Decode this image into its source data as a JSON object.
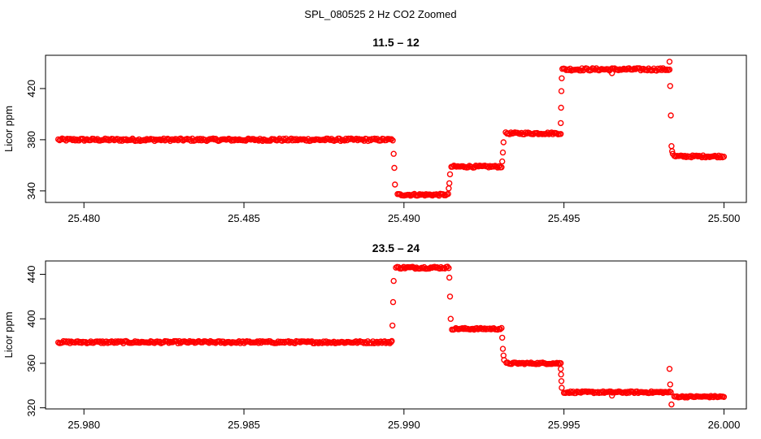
{
  "figure_title": "SPL_080525  2 Hz CO2 Zoomed",
  "colors": {
    "points": "#ff0000",
    "axes": "#000000",
    "background": "#ffffff"
  },
  "chart_data": [
    {
      "type": "scatter",
      "title": "11.5 – 12",
      "xlabel": "",
      "ylabel": "Licor ppm",
      "xlim": [
        25.4788,
        25.5007
      ],
      "ylim": [
        331,
        446
      ],
      "xticks": [
        "25.480",
        "25.485",
        "25.490",
        "25.495",
        "25.500"
      ],
      "yticks": [
        "340",
        "380",
        "420"
      ],
      "grid": false,
      "marker": "open-circle",
      "segments": [
        {
          "x_start": 25.4792,
          "x_end": 25.48965,
          "y": 380,
          "noise": 1.0
        },
        {
          "x_start": 25.4898,
          "x_end": 25.49138,
          "y": 337,
          "noise": 0.8
        },
        {
          "x_start": 25.49148,
          "x_end": 25.49305,
          "y": 359,
          "noise": 0.8
        },
        {
          "x_start": 25.49318,
          "x_end": 25.4949,
          "y": 385,
          "noise": 0.8
        },
        {
          "x_start": 25.49495,
          "x_end": 25.4983,
          "y": 435,
          "noise": 1.0
        },
        {
          "x_start": 25.49845,
          "x_end": 25.5,
          "y": 367,
          "noise": 0.8
        }
      ],
      "transitions": [
        {
          "x": 25.48968,
          "y": 369
        },
        {
          "x": 25.4897,
          "y": 358
        },
        {
          "x": 25.48972,
          "y": 345
        },
        {
          "x": 25.4914,
          "y": 342
        },
        {
          "x": 25.49142,
          "y": 346
        },
        {
          "x": 25.49144,
          "y": 353
        },
        {
          "x": 25.49307,
          "y": 363
        },
        {
          "x": 25.49309,
          "y": 370
        },
        {
          "x": 25.49311,
          "y": 378
        },
        {
          "x": 25.4949,
          "y": 393
        },
        {
          "x": 25.49491,
          "y": 405
        },
        {
          "x": 25.49492,
          "y": 418
        },
        {
          "x": 25.49493,
          "y": 428
        },
        {
          "x": 25.4965,
          "y": 432
        },
        {
          "x": 25.4983,
          "y": 441
        },
        {
          "x": 25.49832,
          "y": 422
        },
        {
          "x": 25.49834,
          "y": 399
        },
        {
          "x": 25.49836,
          "y": 375
        },
        {
          "x": 25.49838,
          "y": 371
        },
        {
          "x": 25.4984,
          "y": 369
        }
      ]
    },
    {
      "type": "scatter",
      "title": "23.5 – 24",
      "xlabel": "",
      "ylabel": "Licor ppm",
      "xlim": [
        25.9788,
        26.0007
      ],
      "ylim": [
        319,
        452
      ],
      "xticks": [
        "25.980",
        "25.985",
        "25.990",
        "25.995",
        "26.000"
      ],
      "yticks": [
        "320",
        "360",
        "400",
        "440"
      ],
      "grid": false,
      "marker": "open-circle",
      "segments": [
        {
          "x_start": 25.9792,
          "x_end": 25.9896,
          "y": 379,
          "noise": 1.0
        },
        {
          "x_start": 25.98975,
          "x_end": 25.9914,
          "y": 446,
          "noise": 1.0
        },
        {
          "x_start": 25.9915,
          "x_end": 25.99305,
          "y": 391,
          "noise": 0.8
        },
        {
          "x_start": 25.9932,
          "x_end": 25.9949,
          "y": 360,
          "noise": 0.8
        },
        {
          "x_start": 25.995,
          "x_end": 25.9983,
          "y": 334,
          "noise": 0.8
        },
        {
          "x_start": 25.99845,
          "x_end": 26.0,
          "y": 330,
          "noise": 0.7
        }
      ],
      "transitions": [
        {
          "x": 25.98962,
          "y": 380
        },
        {
          "x": 25.98964,
          "y": 394
        },
        {
          "x": 25.98966,
          "y": 415
        },
        {
          "x": 25.98968,
          "y": 434
        },
        {
          "x": 25.99142,
          "y": 437
        },
        {
          "x": 25.99144,
          "y": 420
        },
        {
          "x": 25.99146,
          "y": 400
        },
        {
          "x": 25.99307,
          "y": 383
        },
        {
          "x": 25.99309,
          "y": 373
        },
        {
          "x": 25.99311,
          "y": 367
        },
        {
          "x": 25.99313,
          "y": 363
        },
        {
          "x": 25.9949,
          "y": 355
        },
        {
          "x": 25.99491,
          "y": 350
        },
        {
          "x": 25.99492,
          "y": 344
        },
        {
          "x": 25.99493,
          "y": 338
        },
        {
          "x": 25.9965,
          "y": 331
        },
        {
          "x": 25.9983,
          "y": 355
        },
        {
          "x": 25.99832,
          "y": 341
        },
        {
          "x": 25.99834,
          "y": 334
        },
        {
          "x": 25.99836,
          "y": 323
        }
      ]
    }
  ]
}
